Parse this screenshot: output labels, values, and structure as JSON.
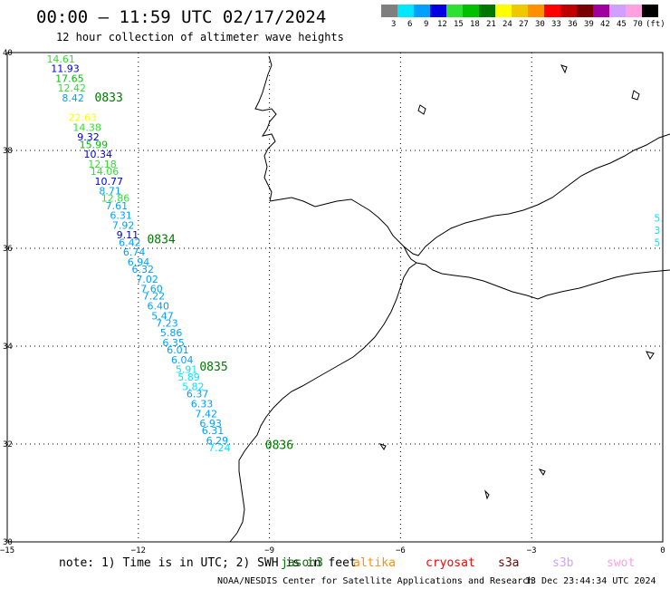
{
  "header": {
    "title": "00:00 — 11:59 UTC 02/17/2024",
    "subtitle": "12 hour collection of altimeter wave heights"
  },
  "colorbar": {
    "unit": "(ft)",
    "bins": [
      {
        "label": "3",
        "color": "#7f7f7f"
      },
      {
        "label": "6",
        "color": "#00e6ff"
      },
      {
        "label": "9",
        "color": "#00a0ff"
      },
      {
        "label": "12",
        "color": "#0000e0"
      },
      {
        "label": "15",
        "color": "#30e030"
      },
      {
        "label": "18",
        "color": "#00c000"
      },
      {
        "label": "21",
        "color": "#007800"
      },
      {
        "label": "24",
        "color": "#ffff00"
      },
      {
        "label": "27",
        "color": "#f0c800"
      },
      {
        "label": "30",
        "color": "#ff9000"
      },
      {
        "label": "33",
        "color": "#ff0000"
      },
      {
        "label": "36",
        "color": "#c00000"
      },
      {
        "label": "39",
        "color": "#780000"
      },
      {
        "label": "42",
        "color": "#a000a0"
      },
      {
        "label": "45",
        "color": "#d0a0ff"
      },
      {
        "label": "70",
        "color": "#ffa0e0"
      },
      {
        "label": "",
        "color": "#000000"
      }
    ]
  },
  "axes": {
    "lon_ticks": [
      {
        "value": -15,
        "label": "−15"
      },
      {
        "value": -12,
        "label": "−12"
      },
      {
        "value": -9,
        "label": "−9"
      },
      {
        "value": -6,
        "label": "−6"
      },
      {
        "value": -3,
        "label": "−3"
      },
      {
        "value": 0,
        "label": "0"
      }
    ],
    "lat_ticks": [
      {
        "value": 30,
        "label": "30"
      },
      {
        "value": 32,
        "label": "32"
      },
      {
        "value": 34,
        "label": "34"
      },
      {
        "value": 36,
        "label": "36"
      },
      {
        "value": 38,
        "label": "38"
      },
      {
        "value": 40,
        "label": "40"
      }
    ],
    "lon_range": [
      -15,
      0
    ],
    "lat_range": [
      30,
      40
    ]
  },
  "track": [
    {
      "lat": 39.8,
      "lon": -14.1,
      "label": "14.61",
      "color": "#30e030"
    },
    {
      "lat": 39.6,
      "lon": -14.0,
      "label": "11.93",
      "color": "#0000e0"
    },
    {
      "lat": 39.4,
      "lon": -13.9,
      "label": "17.65",
      "color": "#00c000"
    },
    {
      "lat": 39.2,
      "lon": -13.85,
      "label": "12.42",
      "color": "#30e030"
    },
    {
      "lat": 39.0,
      "lon": -13.75,
      "label": "8.42",
      "color": "#00a0ff"
    },
    {
      "lat": 38.6,
      "lon": -13.6,
      "label": "22.63",
      "color": "#ffff00"
    },
    {
      "lat": 38.4,
      "lon": -13.5,
      "label": "14.38",
      "color": "#30e030"
    },
    {
      "lat": 38.2,
      "lon": -13.4,
      "label": "9.32",
      "color": "#0000e0"
    },
    {
      "lat": 38.05,
      "lon": -13.35,
      "label": "15.99",
      "color": "#00c000"
    },
    {
      "lat": 37.85,
      "lon": -13.25,
      "label": "10.34",
      "color": "#0000e0"
    },
    {
      "lat": 37.65,
      "lon": -13.15,
      "label": "12.18",
      "color": "#30e030"
    },
    {
      "lat": 37.5,
      "lon": -13.1,
      "label": "14.06",
      "color": "#30e030"
    },
    {
      "lat": 37.3,
      "lon": -13.0,
      "label": "10.77",
      "color": "#0000e0"
    },
    {
      "lat": 37.1,
      "lon": -12.9,
      "label": "8.71",
      "color": "#00a0ff"
    },
    {
      "lat": 36.95,
      "lon": -12.85,
      "label": "12.86",
      "color": "#30e030"
    },
    {
      "lat": 36.8,
      "lon": -12.75,
      "label": "7.61",
      "color": "#00a0ff"
    },
    {
      "lat": 36.6,
      "lon": -12.65,
      "label": "6.31",
      "color": "#00a0ff"
    },
    {
      "lat": 36.4,
      "lon": -12.6,
      "label": "7.92",
      "color": "#00a0ff"
    },
    {
      "lat": 36.2,
      "lon": -12.5,
      "label": "9.11",
      "color": "#0000e0"
    },
    {
      "lat": 36.05,
      "lon": -12.45,
      "label": "6.42",
      "color": "#00a0ff"
    },
    {
      "lat": 35.85,
      "lon": -12.35,
      "label": "6.74",
      "color": "#00a0ff"
    },
    {
      "lat": 35.65,
      "lon": -12.25,
      "label": "6.94",
      "color": "#00a0ff"
    },
    {
      "lat": 35.5,
      "lon": -12.15,
      "label": "6.32",
      "color": "#00a0ff"
    },
    {
      "lat": 35.3,
      "lon": -12.05,
      "label": "7.02",
      "color": "#00a0ff"
    },
    {
      "lat": 35.1,
      "lon": -11.95,
      "label": "7.60",
      "color": "#00a0ff"
    },
    {
      "lat": 34.95,
      "lon": -11.9,
      "label": "7.22",
      "color": "#00a0ff"
    },
    {
      "lat": 34.75,
      "lon": -11.8,
      "label": "6.40",
      "color": "#00a0ff"
    },
    {
      "lat": 34.55,
      "lon": -11.7,
      "label": "5.47",
      "color": "#00a0ff"
    },
    {
      "lat": 34.4,
      "lon": -11.6,
      "label": "7.23",
      "color": "#00a0ff"
    },
    {
      "lat": 34.2,
      "lon": -11.5,
      "label": "5.86",
      "color": "#00a0ff"
    },
    {
      "lat": 34.0,
      "lon": -11.45,
      "label": "6.35",
      "color": "#00a0ff"
    },
    {
      "lat": 33.85,
      "lon": -11.35,
      "label": "6.01",
      "color": "#00a0ff"
    },
    {
      "lat": 33.65,
      "lon": -11.25,
      "label": "6.04",
      "color": "#00a0ff"
    },
    {
      "lat": 33.45,
      "lon": -11.15,
      "label": "5.91",
      "color": "#00e6ff"
    },
    {
      "lat": 33.3,
      "lon": -11.1,
      "label": "5.89",
      "color": "#00e6ff"
    },
    {
      "lat": 33.1,
      "lon": -11.0,
      "label": "5.82",
      "color": "#00e6ff"
    },
    {
      "lat": 32.95,
      "lon": -10.9,
      "label": "6.37",
      "color": "#00a0ff"
    },
    {
      "lat": 32.75,
      "lon": -10.8,
      "label": "6.33",
      "color": "#00a0ff"
    },
    {
      "lat": 32.55,
      "lon": -10.7,
      "label": "7.42",
      "color": "#00a0ff"
    },
    {
      "lat": 32.35,
      "lon": -10.6,
      "label": "6.93",
      "color": "#00a0ff"
    },
    {
      "lat": 32.2,
      "lon": -10.55,
      "label": "6.31",
      "color": "#00a0ff"
    },
    {
      "lat": 32.0,
      "lon": -10.45,
      "label": "6.29",
      "color": "#00a0ff"
    },
    {
      "lat": 31.85,
      "lon": -10.4,
      "label": "7.24",
      "color": "#00e6ff"
    }
  ],
  "time_labels": [
    {
      "lat": 39.0,
      "lon": -13.0,
      "label": "0833"
    },
    {
      "lat": 36.1,
      "lon": -11.8,
      "label": "0834"
    },
    {
      "lat": 33.5,
      "lon": -10.6,
      "label": "0835"
    },
    {
      "lat": 31.9,
      "lon": -9.1,
      "label": "0836"
    }
  ],
  "edge_fragments": [
    {
      "lat": 36.55,
      "lon": -0.2,
      "label": "5.",
      "color": "#00e6ff"
    },
    {
      "lat": 36.3,
      "lon": -0.2,
      "label": "3",
      "color": "#00e6ff"
    },
    {
      "lat": 36.05,
      "lon": -0.2,
      "label": "5",
      "color": "#00e6ff"
    }
  ],
  "note": {
    "text": "note: 1) Time is in UTC; 2) SWH is in feet",
    "satellites": [
      {
        "label": "jason3",
        "color": "#007800"
      },
      {
        "label": "altika",
        "color": "#ff9000"
      },
      {
        "label": "cryosat",
        "color": "#ff0000"
      },
      {
        "label": "s3a",
        "color": "#780000"
      },
      {
        "label": "s3b",
        "color": "#d0a0ff"
      },
      {
        "label": "swot",
        "color": "#ffa0e0"
      }
    ]
  },
  "footer": {
    "credit": "NOAA/NESDIS Center for Satellite Applications and Research",
    "timestamp": "13 Dec 23:44:34 UTC 2024"
  }
}
